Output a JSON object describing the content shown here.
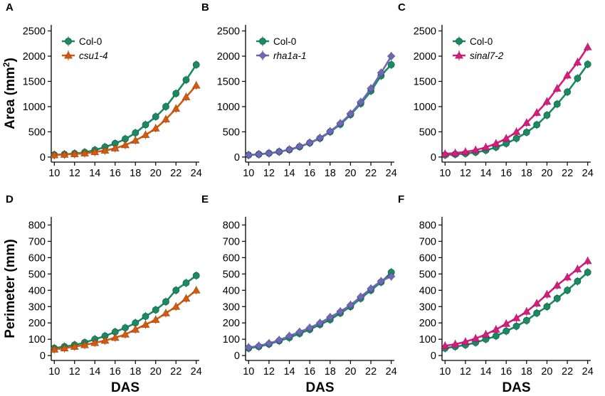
{
  "figure": {
    "common_xlabel": "DAS",
    "row_ylabels": [
      {
        "main": "Area (mm",
        "sup": "2",
        "close": ")"
      },
      {
        "main": "Perimeter (mm)",
        "sup": "",
        "close": ""
      }
    ]
  },
  "colors": {
    "col0": "#1a8a64",
    "csu1_4": "#d4580e",
    "rha1a_1": "#6f67b8",
    "sinal7_2": "#d81b7f",
    "axis": "#000000",
    "text": "#000000"
  },
  "chart_data": [
    {
      "panel": "A",
      "type": "line",
      "row": 0,
      "col": 0,
      "xlabel": "",
      "ylabel": "Area (mm2)",
      "x": [
        10,
        11,
        12,
        13,
        14,
        15,
        16,
        17,
        18,
        19,
        20,
        21,
        22,
        23,
        24
      ],
      "xticks": [
        10,
        12,
        14,
        16,
        18,
        20,
        22,
        24
      ],
      "xlim": [
        9.7,
        24.3
      ],
      "yticks": [
        0,
        500,
        1000,
        1500,
        2000,
        2500
      ],
      "ylim": [
        -100,
        2620
      ],
      "legend_position": "top-left",
      "series": [
        {
          "name": "Col-0",
          "italic": false,
          "marker": "circle",
          "color_key": "col0",
          "values": [
            45,
            55,
            70,
            95,
            140,
            200,
            270,
            360,
            480,
            640,
            800,
            1000,
            1260,
            1530,
            1830
          ]
        },
        {
          "name": "csu1-4",
          "italic": true,
          "marker": "triangle",
          "color_key": "csu1_4",
          "values": [
            40,
            50,
            60,
            75,
            100,
            130,
            175,
            240,
            330,
            440,
            570,
            750,
            960,
            1190,
            1420
          ]
        }
      ]
    },
    {
      "panel": "B",
      "type": "line",
      "row": 0,
      "col": 1,
      "xlabel": "",
      "ylabel": "",
      "x": [
        10,
        11,
        12,
        13,
        14,
        15,
        16,
        17,
        18,
        19,
        20,
        21,
        22,
        23,
        24
      ],
      "xticks": [
        10,
        12,
        14,
        16,
        18,
        20,
        22,
        24
      ],
      "xlim": [
        9.7,
        24.3
      ],
      "yticks": [
        0,
        500,
        1000,
        1500,
        2000,
        2500
      ],
      "ylim": [
        -100,
        2620
      ],
      "legend_position": "top-left",
      "series": [
        {
          "name": "Col-0",
          "italic": false,
          "marker": "circle",
          "color_key": "col0",
          "values": [
            40,
            55,
            75,
            105,
            145,
            205,
            280,
            370,
            500,
            650,
            840,
            1060,
            1310,
            1610,
            1830
          ]
        },
        {
          "name": "rha1a-1",
          "italic": true,
          "marker": "diamond",
          "color_key": "rha1a_1",
          "values": [
            40,
            55,
            75,
            105,
            150,
            210,
            285,
            380,
            510,
            670,
            860,
            1090,
            1360,
            1670,
            2000
          ]
        }
      ]
    },
    {
      "panel": "C",
      "type": "line",
      "row": 0,
      "col": 2,
      "xlabel": "",
      "ylabel": "",
      "x": [
        10,
        11,
        12,
        13,
        14,
        15,
        16,
        17,
        18,
        19,
        20,
        21,
        22,
        23,
        24
      ],
      "xticks": [
        10,
        12,
        14,
        16,
        18,
        20,
        22,
        24
      ],
      "xlim": [
        9.7,
        24.3
      ],
      "yticks": [
        0,
        500,
        1000,
        1500,
        2000,
        2500
      ],
      "ylim": [
        -100,
        2620
      ],
      "legend_position": "top-left",
      "series": [
        {
          "name": "Col-0",
          "italic": false,
          "marker": "circle",
          "color_key": "col0",
          "values": [
            40,
            55,
            70,
            95,
            135,
            195,
            270,
            370,
            490,
            640,
            830,
            1050,
            1290,
            1560,
            1840
          ]
        },
        {
          "name": "sinal7-2",
          "italic": true,
          "marker": "triangle",
          "color_key": "sinal7_2",
          "values": [
            65,
            80,
            105,
            140,
            195,
            270,
            370,
            500,
            680,
            880,
            1100,
            1360,
            1620,
            1880,
            2180
          ]
        }
      ]
    },
    {
      "panel": "D",
      "type": "line",
      "row": 1,
      "col": 0,
      "xlabel": "DAS",
      "ylabel": "Perimeter (mm)",
      "x": [
        10,
        11,
        12,
        13,
        14,
        15,
        16,
        17,
        18,
        19,
        20,
        21,
        22,
        23,
        24
      ],
      "xticks": [
        10,
        12,
        14,
        16,
        18,
        20,
        22,
        24
      ],
      "xlim": [
        9.7,
        24.3
      ],
      "yticks": [
        0,
        100,
        200,
        300,
        400,
        500,
        600,
        700,
        800
      ],
      "ylim": [
        -30,
        850
      ],
      "legend_position": "none",
      "series": [
        {
          "name": "Col-0",
          "italic": false,
          "marker": "circle",
          "color_key": "col0",
          "values": [
            45,
            55,
            65,
            80,
            100,
            120,
            145,
            170,
            200,
            240,
            280,
            330,
            400,
            445,
            490
          ]
        },
        {
          "name": "csu1-4",
          "italic": true,
          "marker": "triangle",
          "color_key": "csu1_4",
          "values": [
            38,
            45,
            55,
            65,
            78,
            92,
            110,
            130,
            160,
            190,
            220,
            260,
            300,
            350,
            400
          ]
        }
      ]
    },
    {
      "panel": "E",
      "type": "line",
      "row": 1,
      "col": 1,
      "xlabel": "DAS",
      "ylabel": "",
      "x": [
        10,
        11,
        12,
        13,
        14,
        15,
        16,
        17,
        18,
        19,
        20,
        21,
        22,
        23,
        24
      ],
      "xticks": [
        10,
        12,
        14,
        16,
        18,
        20,
        22,
        24
      ],
      "xlim": [
        9.7,
        24.3
      ],
      "yticks": [
        0,
        100,
        200,
        300,
        400,
        500,
        600,
        700,
        800
      ],
      "ylim": [
        -30,
        850
      ],
      "legend_position": "none",
      "series": [
        {
          "name": "Col-0",
          "italic": false,
          "marker": "circle",
          "color_key": "col0",
          "values": [
            45,
            55,
            70,
            90,
            110,
            135,
            160,
            190,
            220,
            260,
            300,
            350,
            400,
            450,
            510
          ]
        },
        {
          "name": "rha1a-1",
          "italic": true,
          "marker": "diamond",
          "color_key": "rha1a_1",
          "values": [
            50,
            60,
            75,
            95,
            120,
            145,
            170,
            200,
            235,
            270,
            310,
            360,
            410,
            455,
            485
          ]
        }
      ]
    },
    {
      "panel": "F",
      "type": "line",
      "row": 1,
      "col": 2,
      "xlabel": "DAS",
      "ylabel": "",
      "x": [
        10,
        11,
        12,
        13,
        14,
        15,
        16,
        17,
        18,
        19,
        20,
        21,
        22,
        23,
        24
      ],
      "xticks": [
        10,
        12,
        14,
        16,
        18,
        20,
        22,
        24
      ],
      "xlim": [
        9.7,
        24.3
      ],
      "yticks": [
        0,
        100,
        200,
        300,
        400,
        500,
        600,
        700,
        800
      ],
      "ylim": [
        -30,
        850
      ],
      "legend_position": "none",
      "series": [
        {
          "name": "Col-0",
          "italic": false,
          "marker": "circle",
          "color_key": "col0",
          "values": [
            45,
            55,
            65,
            80,
            100,
            120,
            150,
            180,
            215,
            260,
            300,
            350,
            400,
            455,
            510
          ]
        },
        {
          "name": "sinal7-2",
          "italic": true,
          "marker": "triangle",
          "color_key": "sinal7_2",
          "values": [
            60,
            70,
            85,
            105,
            130,
            160,
            195,
            230,
            270,
            320,
            375,
            430,
            480,
            530,
            580
          ]
        }
      ]
    }
  ]
}
